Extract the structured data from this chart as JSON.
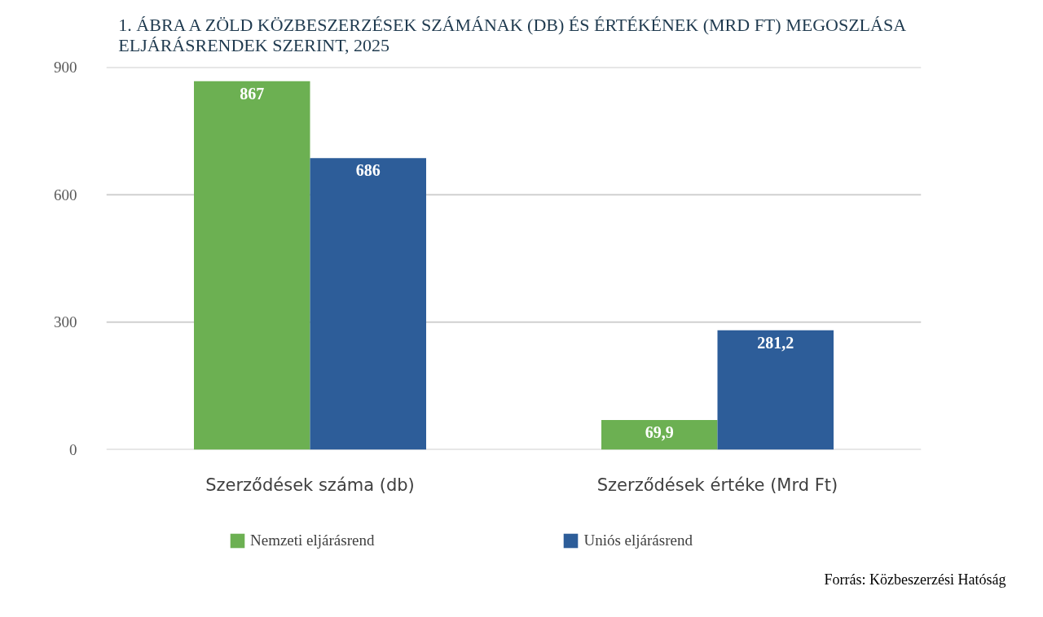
{
  "chart_data": {
    "type": "bar",
    "title": "1. ÁBRA A ZÖLD KÖZBESZERZÉSEK SZÁMÁNAK (DB) ÉS ÉRTÉKÉNEK (MRD FT) MEGOSZLÁSA ELJÁRÁSRENDEK SZERINT, 2025",
    "categories": [
      "Szerződések száma (db)",
      "Szerződések értéke (Mrd Ft)"
    ],
    "series": [
      {
        "name": "Nemzeti eljárásrend",
        "color": "#6cb052",
        "values": [
          867,
          69.9
        ],
        "value_labels": [
          "867",
          "69,9"
        ]
      },
      {
        "name": "Uniós eljárásrend",
        "color": "#2d5d99",
        "values": [
          686,
          281.2
        ],
        "value_labels": [
          "686",
          "281,2"
        ]
      }
    ],
    "ylim": [
      0,
      900
    ],
    "yticks": [
      0,
      300,
      600,
      900
    ],
    "grid": "y",
    "legend": "bottom",
    "annotations": [
      "Forrás: Közbeszerzési Hatóság"
    ]
  }
}
